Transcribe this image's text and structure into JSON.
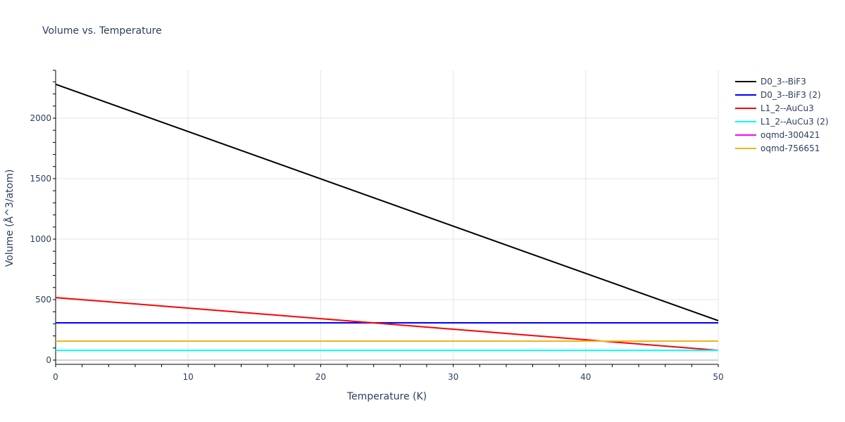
{
  "title": "Volume vs. Temperature",
  "chart_data": {
    "type": "line",
    "title": "Volume vs. Temperature",
    "xlabel": "Temperature (K)",
    "ylabel": "Volume (Å^3/atom)",
    "xlim": [
      0,
      50
    ],
    "ylim": [
      -60,
      2395
    ],
    "xticks": [
      0,
      10,
      20,
      30,
      40,
      50
    ],
    "yticks": [
      0,
      500,
      1000,
      1500,
      2000
    ],
    "grid": true,
    "legend_position": "right",
    "series": [
      {
        "name": "D0_3--BiF3",
        "color": "#000000",
        "x": [
          0,
          50
        ],
        "y": [
          2280,
          326
        ]
      },
      {
        "name": "D0_3--BiF3 (2)",
        "color": "#0000ff",
        "x": [
          0,
          50
        ],
        "y": [
          308,
          308
        ]
      },
      {
        "name": "L1_2--AuCu3",
        "color": "#ff0000",
        "x": [
          0,
          50
        ],
        "y": [
          517,
          81
        ]
      },
      {
        "name": "L1_2--AuCu3 (2)",
        "color": "#00ffff",
        "x": [
          0,
          50
        ],
        "y": [
          81,
          81
        ]
      },
      {
        "name": "oqmd-300421",
        "color": "#ff00ff",
        "x": [
          0,
          50
        ],
        "y": [
          157,
          157
        ]
      },
      {
        "name": "oqmd-756651",
        "color": "#f0b41c",
        "x": [
          0,
          50
        ],
        "y": [
          157,
          157
        ]
      }
    ]
  }
}
